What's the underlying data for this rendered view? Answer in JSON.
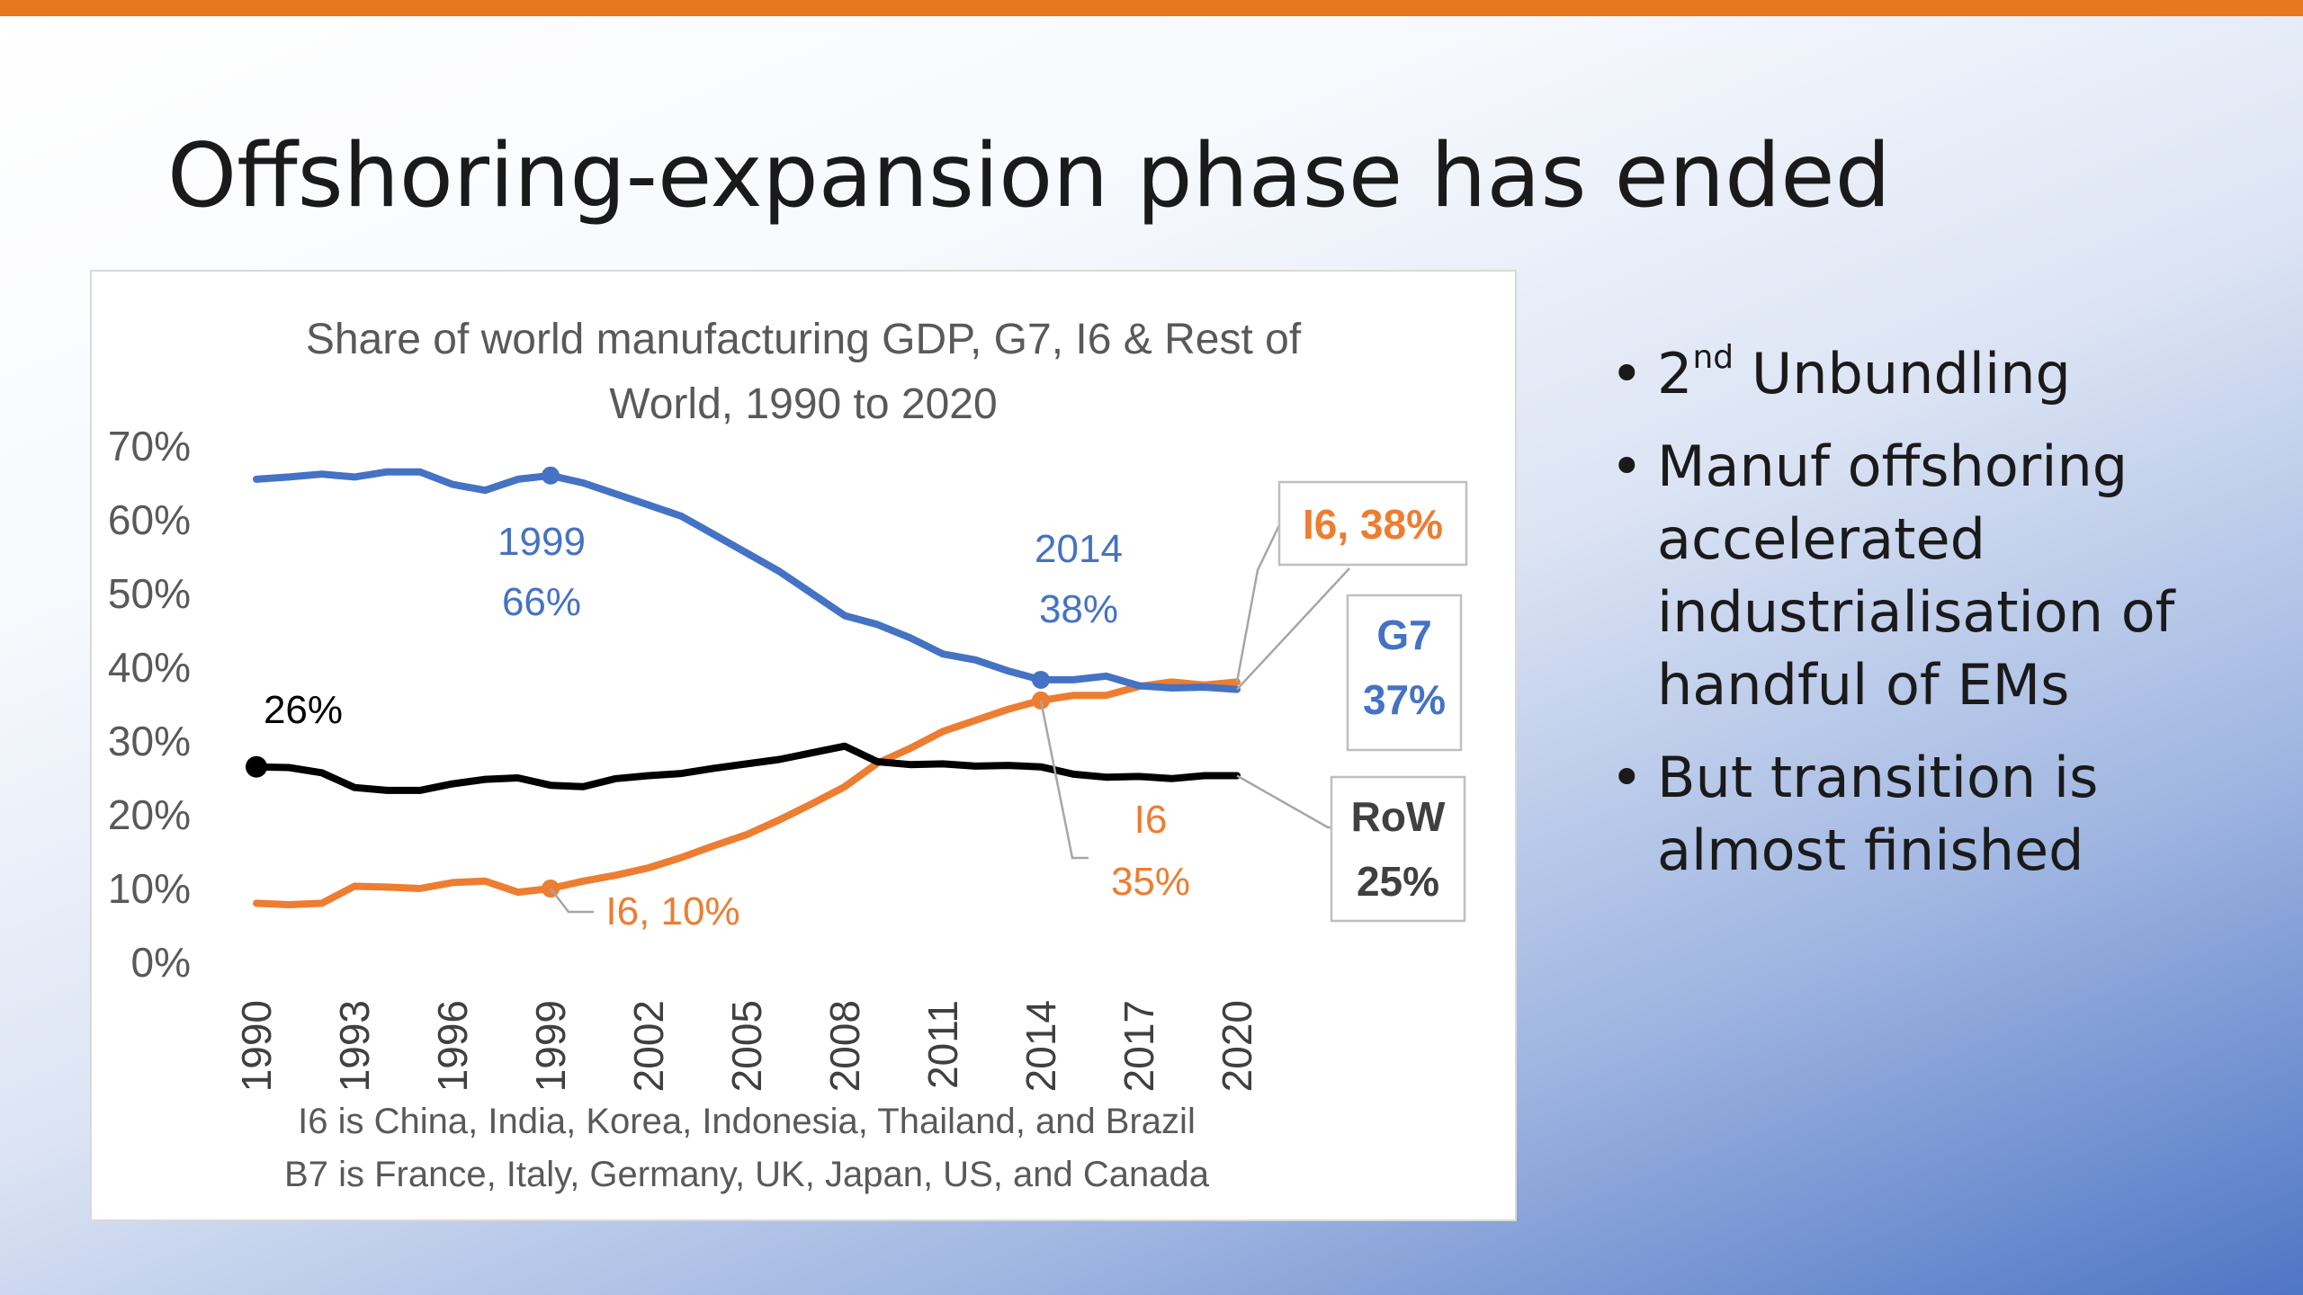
{
  "slide": {
    "title": "Offshoring-expansion phase has ended",
    "accent_color": "#e8771f"
  },
  "bullets": [
    {
      "text": "2",
      "sup": "nd",
      "rest": " Unbundling"
    },
    {
      "text": "Manuf offshoring accelerated industrialisation of handful of EMs"
    },
    {
      "text": "But transition is almost finished"
    }
  ],
  "chart_data": {
    "type": "line",
    "title": "Share of world manufacturing GDP, G7, I6 & Rest of World, 1990 to 2020",
    "title_lines": [
      "Share of world manufacturing GDP, G7, I6 & Rest of",
      "World, 1990 to 2020"
    ],
    "xlabel": "",
    "ylabel": "",
    "x": [
      1990,
      1991,
      1992,
      1993,
      1994,
      1995,
      1996,
      1997,
      1998,
      1999,
      2000,
      2001,
      2002,
      2003,
      2004,
      2005,
      2006,
      2007,
      2008,
      2009,
      2010,
      2011,
      2012,
      2013,
      2014,
      2015,
      2016,
      2017,
      2018,
      2019,
      2020
    ],
    "x_tick_labels": [
      "1990",
      "1993",
      "1996",
      "1999",
      "2002",
      "2005",
      "2008",
      "2011",
      "2014",
      "2017",
      "2020"
    ],
    "y_tick_labels": [
      "0%",
      "10%",
      "20%",
      "30%",
      "40%",
      "50%",
      "60%",
      "70%"
    ],
    "ylim": [
      0,
      70
    ],
    "grid": false,
    "legend": "none",
    "series": [
      {
        "key": "g7",
        "color": "#4472c4",
        "values": [
          65.5,
          65.8,
          66.2,
          65.8,
          66.5,
          66.5,
          64.8,
          64,
          65.5,
          66,
          65,
          63.5,
          62,
          60.5,
          58,
          55.5,
          53,
          50,
          47,
          45.8,
          44,
          41.8,
          41,
          39.5,
          38.3,
          38.3,
          38.8,
          37.5,
          37.2,
          37.3,
          37
        ]
      },
      {
        "key": "i6",
        "color": "#ed7d31",
        "values": [
          8,
          7.8,
          8,
          10.3,
          10.2,
          10,
          10.8,
          11,
          9.5,
          10,
          11,
          11.8,
          12.8,
          14.2,
          15.8,
          17.3,
          19.3,
          21.5,
          23.8,
          27,
          29,
          31.3,
          32.8,
          34.3,
          35.5,
          36.2,
          36.2,
          37.4,
          38,
          37.6,
          38
        ]
      },
      {
        "key": "row",
        "color": "#000000",
        "values": [
          26.5,
          26.4,
          25.7,
          23.7,
          23.3,
          23.3,
          24.2,
          24.8,
          25,
          24,
          23.8,
          24.9,
          25.3,
          25.6,
          26.3,
          26.9,
          27.5,
          28.4,
          29.3,
          27.2,
          26.8,
          26.9,
          26.6,
          26.7,
          26.5,
          25.5,
          25.1,
          25.2,
          24.9,
          25.3,
          25.3
        ]
      }
    ],
    "annotations": {
      "g7_1999": {
        "year": "1999",
        "value": "66%",
        "color": "#4472c4"
      },
      "g7_2014": {
        "year": "2014",
        "value": "38%",
        "color": "#4472c4"
      },
      "row_1990": {
        "label": "26%",
        "color": "#000000"
      },
      "i6_1999": {
        "label": "I6, 10%",
        "color": "#ed7d31"
      },
      "i6_2014": {
        "year": "I6",
        "value": "35%",
        "color": "#ed7d31"
      },
      "i6_end": {
        "label": "I6, 38%",
        "color": "#ed7d31"
      },
      "g7_end": {
        "name": "G7",
        "value": "37%",
        "color": "#4472c4"
      },
      "row_end": {
        "name": "RoW",
        "value": "25%",
        "color": "#404040"
      }
    },
    "footnotes": [
      "I6 is China, India, Korea, Indonesia, Thailand, and Brazil",
      "B7 is France, Italy, Germany, UK, Japan, US, and Canada"
    ]
  }
}
